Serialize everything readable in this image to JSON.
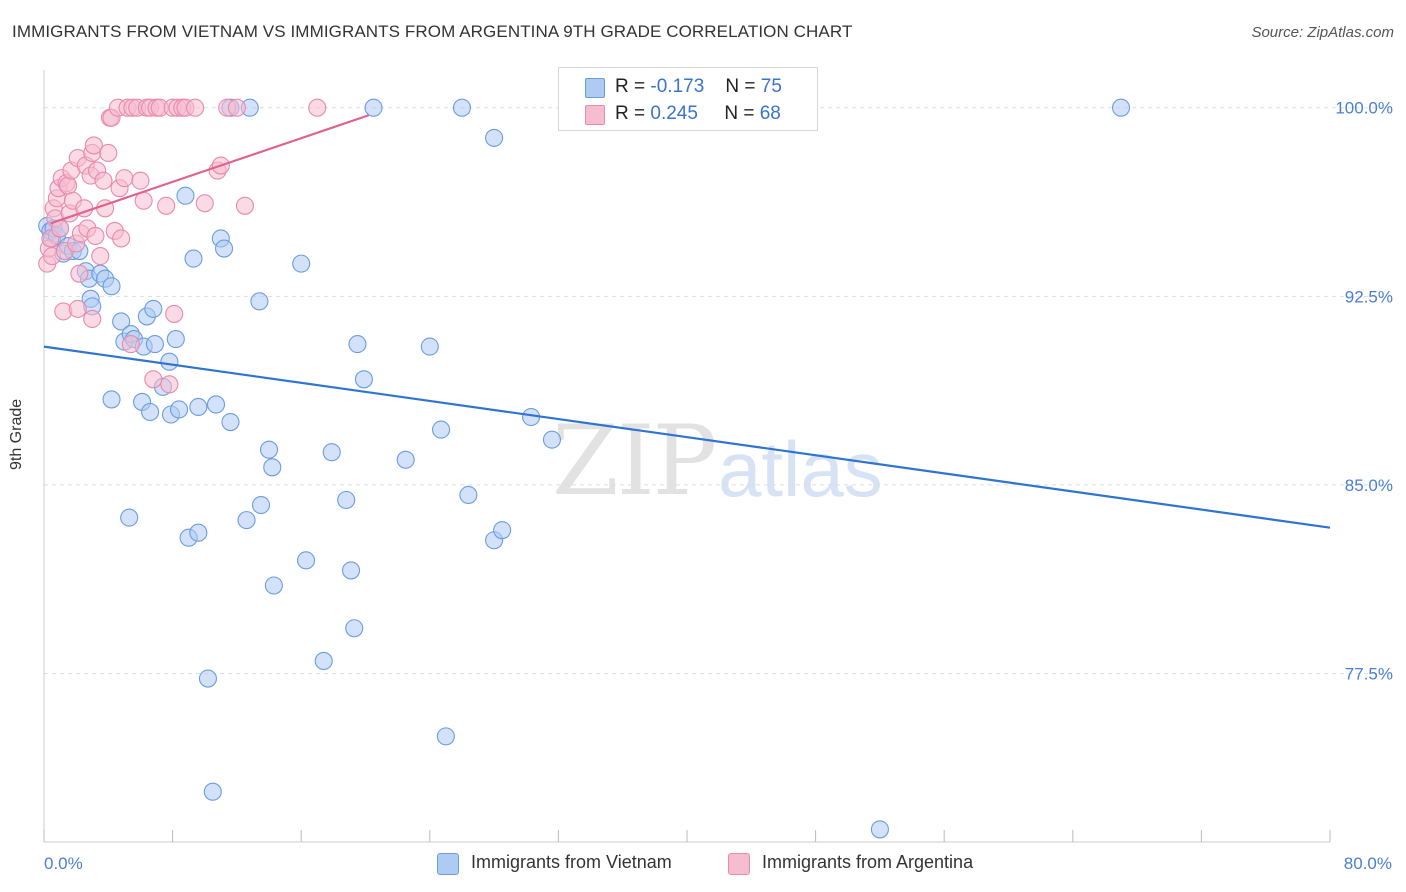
{
  "title": "IMMIGRANTS FROM VIETNAM VS IMMIGRANTS FROM ARGENTINA 9TH GRADE CORRELATION CHART",
  "source": "Source: ZipAtlas.com",
  "watermark": {
    "zip": "ZIP",
    "atlas": "atlas"
  },
  "legend": {
    "vietnam": {
      "r_label": "R =",
      "r_value": "-0.173",
      "n_label": "N =",
      "n_value": "75"
    },
    "argentina": {
      "r_label": "R =",
      "r_value": "0.245",
      "n_label": "N =",
      "n_value": "68"
    }
  },
  "colors": {
    "vietnam_fill": "#aecbf2",
    "vietnam_stroke": "#6a9de0",
    "vietnam_line": "#2f74d0",
    "argentina_fill": "#f6bcd0",
    "argentina_stroke": "#e98aad",
    "argentina_line": "#e0628e",
    "tick_text": "#4a7fd1",
    "grid": "#dddddd"
  },
  "chart_data": {
    "type": "scatter",
    "title": "IMMIGRANTS FROM VIETNAM VS IMMIGRANTS FROM ARGENTINA 9TH GRADE CORRELATION CHART",
    "xlabel": "",
    "ylabel": "9th Grade",
    "xlim": [
      0,
      80
    ],
    "ylim": [
      70.8,
      101.5
    ],
    "x_tick_labels": [
      {
        "value": 0,
        "label": "0.0%"
      },
      {
        "value": 80,
        "label": "80.0%"
      }
    ],
    "x_minor_ticks": [
      0,
      8,
      16,
      24,
      32,
      40,
      48,
      56,
      64,
      72,
      80
    ],
    "y_ticks": [
      {
        "value": 100,
        "label": "100.0%"
      },
      {
        "value": 92.5,
        "label": "92.5%"
      },
      {
        "value": 85,
        "label": "85.0%"
      },
      {
        "value": 77.5,
        "label": "77.5%"
      }
    ],
    "series": [
      {
        "name": "Immigrants from Vietnam",
        "trend": {
          "x": [
            0,
            80
          ],
          "y": [
            90.5,
            83.3
          ]
        },
        "points": [
          [
            0.2,
            95.3
          ],
          [
            0.4,
            95.1
          ],
          [
            0.5,
            94.8
          ],
          [
            0.6,
            95.2
          ],
          [
            0.8,
            94.9
          ],
          [
            1.0,
            95.2
          ],
          [
            1.2,
            94.2
          ],
          [
            1.5,
            94.5
          ],
          [
            1.8,
            94.3
          ],
          [
            2.2,
            94.3
          ],
          [
            2.6,
            93.5
          ],
          [
            2.8,
            93.2
          ],
          [
            2.9,
            92.4
          ],
          [
            3.0,
            92.1
          ],
          [
            3.5,
            93.4
          ],
          [
            3.8,
            93.2
          ],
          [
            4.2,
            92.9
          ],
          [
            4.8,
            91.5
          ],
          [
            5.0,
            90.7
          ],
          [
            5.4,
            91.0
          ],
          [
            5.6,
            90.8
          ],
          [
            6.2,
            90.5
          ],
          [
            6.4,
            91.7
          ],
          [
            6.8,
            92.0
          ],
          [
            6.9,
            90.6
          ],
          [
            7.4,
            88.9
          ],
          [
            7.8,
            89.9
          ],
          [
            8.2,
            90.8
          ],
          [
            4.2,
            88.4
          ],
          [
            6.1,
            88.3
          ],
          [
            6.6,
            87.9
          ],
          [
            7.9,
            87.8
          ],
          [
            8.4,
            88.0
          ],
          [
            9.6,
            88.1
          ],
          [
            10.7,
            88.2
          ],
          [
            11.6,
            87.5
          ],
          [
            8.8,
            96.5
          ],
          [
            9.3,
            94.0
          ],
          [
            11.0,
            94.8
          ],
          [
            11.2,
            94.4
          ],
          [
            11.6,
            100.0
          ],
          [
            12.8,
            100.0
          ],
          [
            13.4,
            92.3
          ],
          [
            14.0,
            86.4
          ],
          [
            14.2,
            85.7
          ],
          [
            13.5,
            84.2
          ],
          [
            12.6,
            83.6
          ],
          [
            14.3,
            81.0
          ],
          [
            16.0,
            93.8
          ],
          [
            16.3,
            82.0
          ],
          [
            17.4,
            78.0
          ],
          [
            17.9,
            86.3
          ],
          [
            18.8,
            84.4
          ],
          [
            19.1,
            81.6
          ],
          [
            19.3,
            79.3
          ],
          [
            19.5,
            90.6
          ],
          [
            19.9,
            89.2
          ],
          [
            20.5,
            100.0
          ],
          [
            22.5,
            86.0
          ],
          [
            24.0,
            90.5
          ],
          [
            24.7,
            87.2
          ],
          [
            25.0,
            75.0
          ],
          [
            26.0,
            100.0
          ],
          [
            26.4,
            84.6
          ],
          [
            28.0,
            98.8
          ],
          [
            28.0,
            82.8
          ],
          [
            28.5,
            83.2
          ],
          [
            30.3,
            87.7
          ],
          [
            31.6,
            86.8
          ],
          [
            5.3,
            83.7
          ],
          [
            9.0,
            82.9
          ],
          [
            9.6,
            83.1
          ],
          [
            10.2,
            77.3
          ],
          [
            10.5,
            72.8
          ],
          [
            52.0,
            71.3
          ],
          [
            67.0,
            100.0
          ]
        ]
      },
      {
        "name": "Immigrants from Argentina",
        "trend": {
          "x": [
            0.4,
            20.2
          ],
          "y": [
            95.4,
            99.7
          ]
        },
        "points": [
          [
            0.2,
            93.8
          ],
          [
            0.3,
            94.4
          ],
          [
            0.4,
            94.8
          ],
          [
            0.5,
            94.1
          ],
          [
            0.6,
            96.0
          ],
          [
            0.7,
            95.6
          ],
          [
            0.8,
            96.4
          ],
          [
            0.9,
            96.8
          ],
          [
            1.0,
            95.2
          ],
          [
            1.1,
            97.2
          ],
          [
            1.3,
            94.3
          ],
          [
            1.4,
            97.0
          ],
          [
            1.5,
            96.9
          ],
          [
            1.6,
            95.8
          ],
          [
            1.7,
            97.5
          ],
          [
            1.8,
            96.3
          ],
          [
            2.0,
            94.6
          ],
          [
            2.1,
            98.0
          ],
          [
            2.2,
            93.4
          ],
          [
            2.3,
            95.0
          ],
          [
            2.5,
            96.0
          ],
          [
            2.6,
            97.7
          ],
          [
            2.7,
            95.2
          ],
          [
            2.9,
            97.3
          ],
          [
            3.0,
            98.2
          ],
          [
            3.1,
            98.5
          ],
          [
            3.2,
            94.9
          ],
          [
            3.3,
            97.5
          ],
          [
            3.5,
            94.1
          ],
          [
            3.7,
            97.1
          ],
          [
            3.8,
            96.0
          ],
          [
            4.0,
            98.2
          ],
          [
            4.1,
            99.6
          ],
          [
            4.2,
            99.6
          ],
          [
            4.4,
            95.1
          ],
          [
            4.6,
            100.0
          ],
          [
            4.7,
            96.8
          ],
          [
            4.8,
            94.8
          ],
          [
            5.0,
            97.2
          ],
          [
            5.2,
            100.0
          ],
          [
            5.5,
            100.0
          ],
          [
            5.8,
            100.0
          ],
          [
            6.0,
            97.1
          ],
          [
            6.2,
            96.3
          ],
          [
            6.4,
            100.0
          ],
          [
            6.6,
            100.0
          ],
          [
            7.0,
            100.0
          ],
          [
            7.2,
            100.0
          ],
          [
            7.6,
            96.1
          ],
          [
            8.0,
            100.0
          ],
          [
            8.3,
            100.0
          ],
          [
            8.6,
            100.0
          ],
          [
            8.8,
            100.0
          ],
          [
            9.4,
            100.0
          ],
          [
            10.8,
            97.5
          ],
          [
            11.0,
            97.7
          ],
          [
            11.4,
            100.0
          ],
          [
            12.0,
            100.0
          ],
          [
            12.5,
            96.1
          ],
          [
            17.0,
            100.0
          ],
          [
            1.2,
            91.9
          ],
          [
            2.1,
            92.0
          ],
          [
            3.0,
            91.6
          ],
          [
            5.4,
            90.6
          ],
          [
            6.8,
            89.2
          ],
          [
            7.8,
            89.0
          ],
          [
            8.1,
            91.8
          ],
          [
            10.0,
            96.2
          ]
        ]
      }
    ]
  },
  "bottom_legend": {
    "vietnam": "Immigrants from Vietnam",
    "argentina": "Immigrants from Argentina"
  }
}
